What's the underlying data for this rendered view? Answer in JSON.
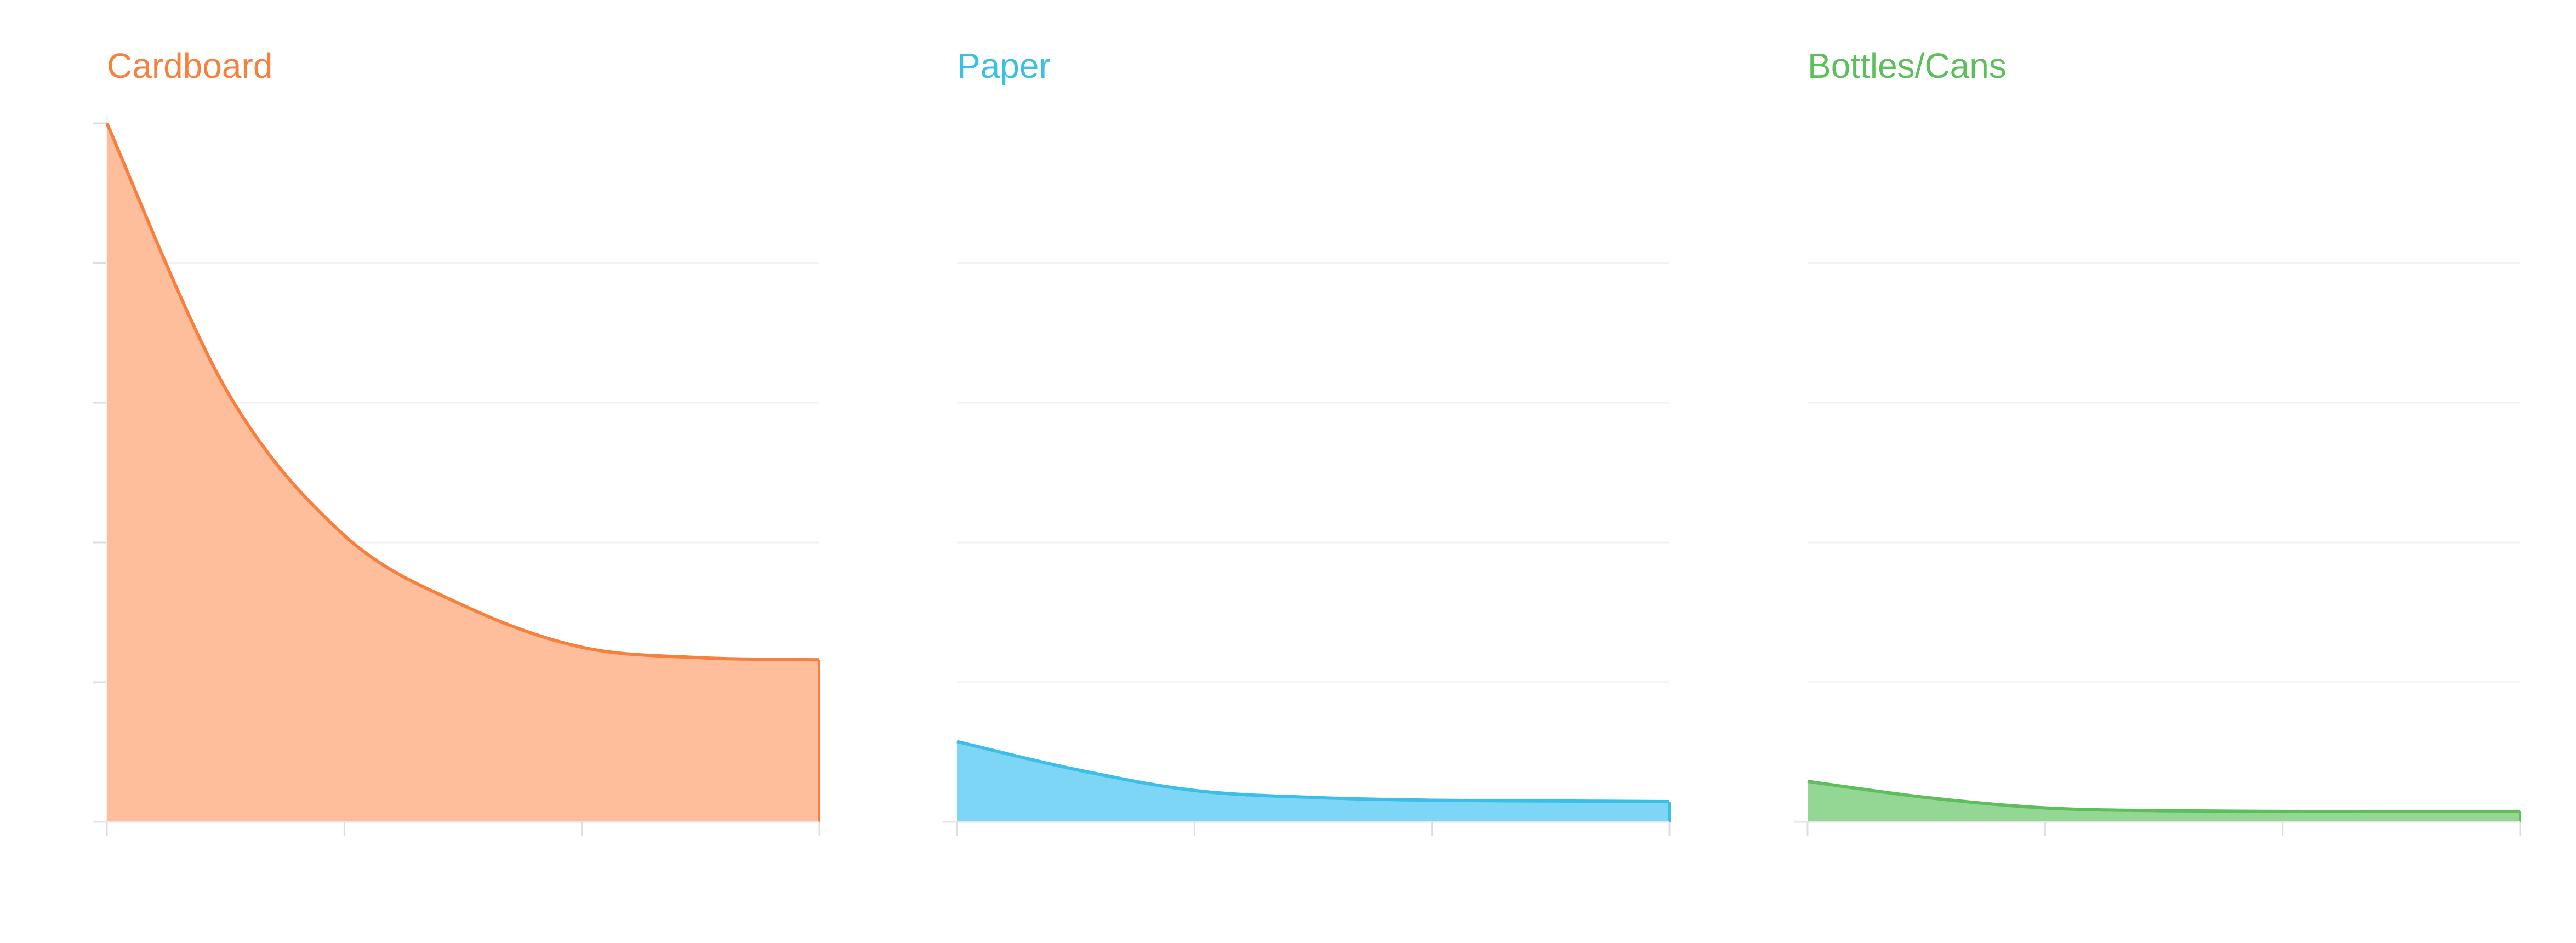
{
  "chart_data": [
    {
      "type": "area",
      "title": "Cardboard",
      "color": "#f7803f",
      "fill": "#ffbe9b",
      "x": [
        0,
        1,
        2,
        3,
        4,
        5,
        6
      ],
      "values": [
        1.0,
        0.62,
        0.41,
        0.31,
        0.25,
        0.235,
        0.232
      ],
      "ylim": [
        0,
        1.0
      ],
      "grid": true
    },
    {
      "type": "area",
      "title": "Paper",
      "color": "#3bbfe6",
      "fill": "#7dd6f5",
      "x": [
        0,
        1,
        2,
        3,
        4,
        5,
        6
      ],
      "values": [
        0.115,
        0.075,
        0.045,
        0.035,
        0.031,
        0.03,
        0.029
      ],
      "ylim": [
        0,
        1.0
      ],
      "grid": true
    },
    {
      "type": "area",
      "title": "Bottles/Cans",
      "color": "#5cbf5c",
      "fill": "#94d694",
      "x": [
        0,
        1,
        2,
        3,
        4,
        5,
        6
      ],
      "values": [
        0.058,
        0.035,
        0.02,
        0.016,
        0.015,
        0.015,
        0.015
      ],
      "ylim": [
        0,
        1.0
      ],
      "grid": true
    }
  ]
}
